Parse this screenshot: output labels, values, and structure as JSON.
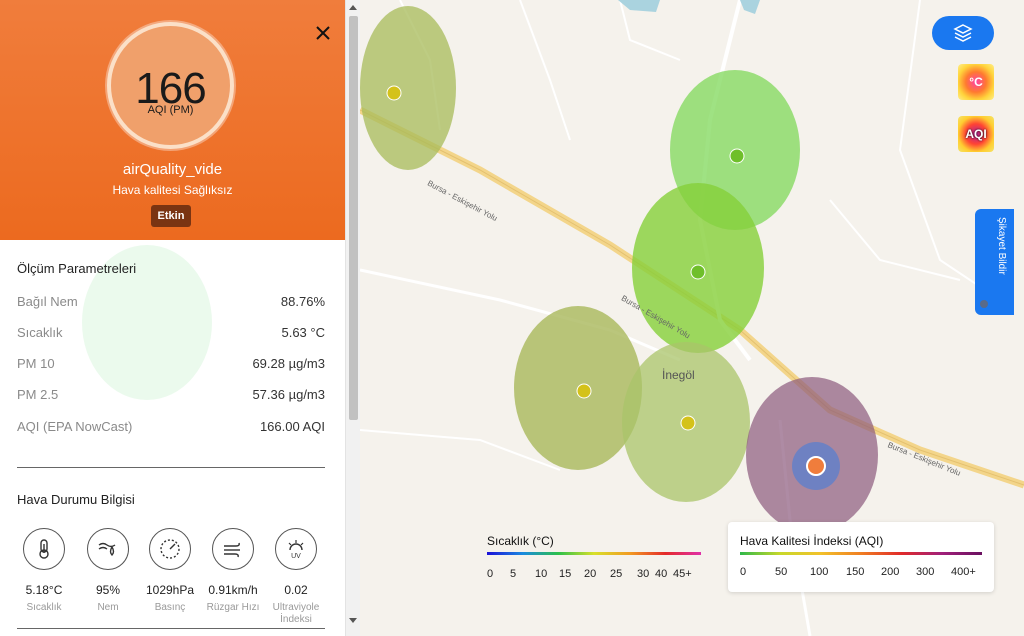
{
  "panel": {
    "close_icon": "close-icon",
    "aqi_value": "166",
    "aqi_unit": "AQI (PM)",
    "station_name": "airQuality_vide",
    "status_text": "Hava kalitesi Sağlıksız",
    "badge": "Etkin",
    "header_color": "#ec6a1f"
  },
  "params": {
    "title": "Ölçüm Parametreleri",
    "rows": [
      {
        "label": "Bağıl Nem",
        "value": "88.76%"
      },
      {
        "label": "Sıcaklık",
        "value": "5.63 °C"
      },
      {
        "label": "PM 10",
        "value": "69.28 µg/m3"
      },
      {
        "label": "PM 2.5",
        "value": "57.36 µg/m3"
      },
      {
        "label": "AQI (EPA NowCast)",
        "value": "166.00 AQI"
      }
    ]
  },
  "weather": {
    "title": "Hava Durumu Bilgisi",
    "items": [
      {
        "icon": "thermometer-icon",
        "value": "5.18°C",
        "label": "Sıcaklık"
      },
      {
        "icon": "humidity-icon",
        "value": "95%",
        "label": "Nem"
      },
      {
        "icon": "pressure-icon",
        "value": "1029hPa",
        "label": "Basınç"
      },
      {
        "icon": "wind-icon",
        "value": "0.91km/h",
        "label": "Rüzgar Hızı"
      },
      {
        "icon": "uv-icon",
        "value": "0.02",
        "label": "Ultraviyole İndeksi"
      }
    ]
  },
  "map": {
    "town": "İnegöl",
    "road_labels": [
      "Bursa - Eskişehir Yolu",
      "Bursa - Eskişehir Yolu",
      "Bursa - Eskişehir Yolu"
    ],
    "layers_icon": "layers-icon",
    "thumb_temp_label": "°C",
    "thumb_aqi_label": "AQI",
    "report_label": "Şikayet Bildir",
    "stations": [
      {
        "color": "#d4c21a",
        "zone": "#a7bb5a"
      },
      {
        "color": "#6fbf2a",
        "zone": "#7fd85a"
      },
      {
        "color": "#6fbf2a",
        "zone": "#86cf3a"
      },
      {
        "color": "#d4c21a",
        "zone": "#a9b85b"
      },
      {
        "color": "#d4c21a",
        "zone": "#a9c46a"
      },
      {
        "color": "#f07d3c",
        "zone": "#8c5a7d"
      }
    ]
  },
  "legend_temp": {
    "title": "Sıcaklık (°C)",
    "ticks": [
      "0",
      "5",
      "10",
      "15",
      "20",
      "25",
      "30",
      "40",
      "45+"
    ]
  },
  "legend_aqi": {
    "title": "Hava Kalitesi İndeksi (AQI)",
    "ticks": [
      "0",
      "50",
      "100",
      "150",
      "200",
      "300",
      "400+"
    ]
  }
}
